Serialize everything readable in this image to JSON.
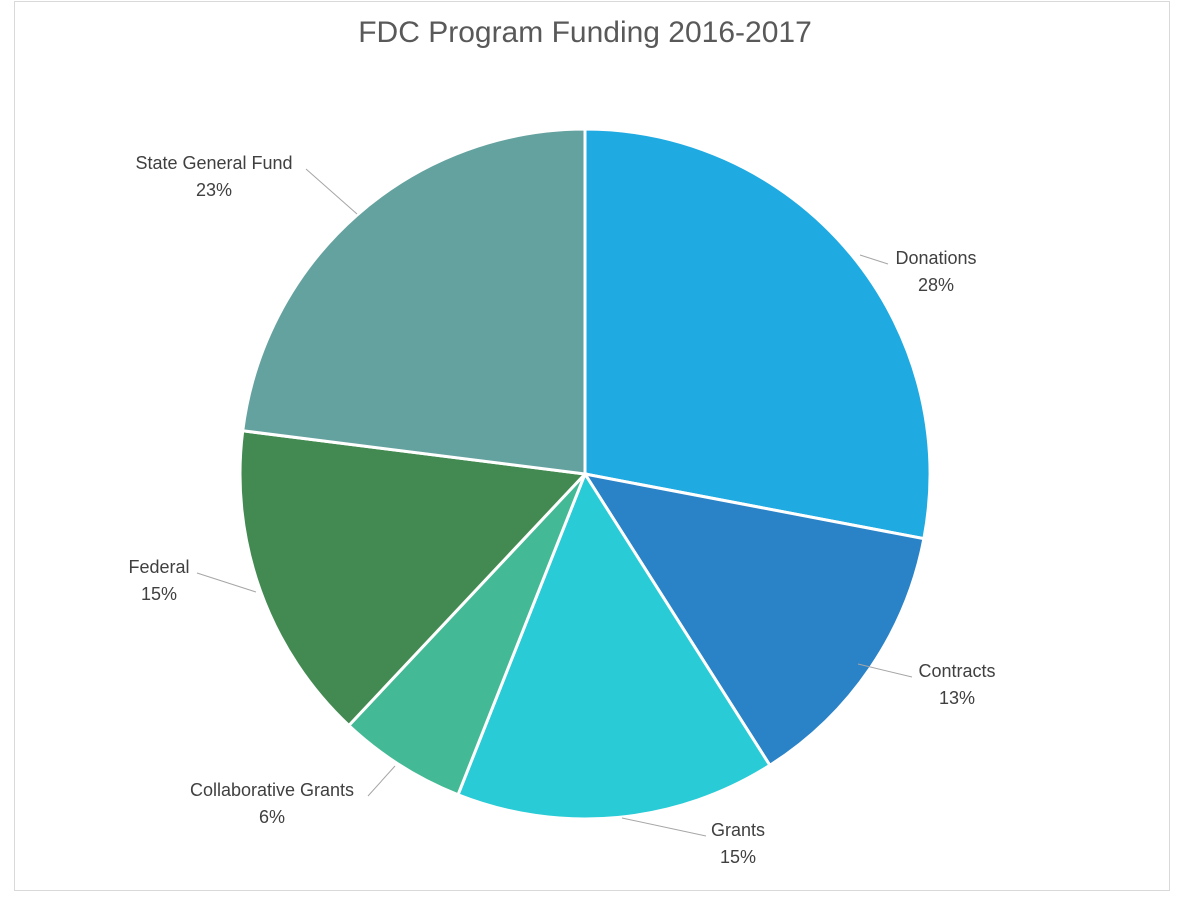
{
  "chart_data": {
    "type": "pie",
    "title": "FDC Program Funding 2016-2017",
    "slices": [
      {
        "label": "Donations",
        "percent_label": "28%",
        "value": 28,
        "color": "#20aae2"
      },
      {
        "label": "Contracts",
        "percent_label": "13%",
        "value": 13,
        "color": "#2a82c7"
      },
      {
        "label": "Grants",
        "percent_label": "15%",
        "value": 15,
        "color": "#29cbd6"
      },
      {
        "label": "Collaborative Grants",
        "percent_label": "6%",
        "value": 6,
        "color": "#44b996"
      },
      {
        "label": "Federal",
        "percent_label": "15%",
        "value": 15,
        "color": "#438a52"
      },
      {
        "label": "State General Fund",
        "percent_label": "23%",
        "value": 23,
        "color": "#64a2a0"
      }
    ],
    "legend": "none",
    "label_style": "outside-with-leader-lines"
  }
}
